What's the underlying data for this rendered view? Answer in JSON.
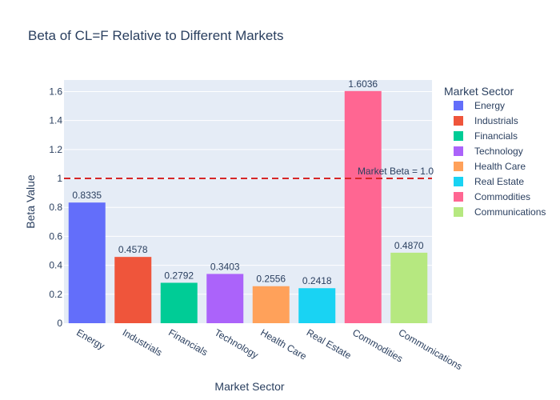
{
  "colors": {
    "plot_bg": "#e5ecf6",
    "grid": "#ffffff",
    "text": "#2a3f5f",
    "reference_line": "#d62728"
  },
  "chart_data": {
    "type": "bar",
    "title": "Beta of CL=F Relative to Different Markets",
    "xlabel": "Market Sector",
    "ylabel": "Beta Value",
    "ylim": [
      0,
      1.68
    ],
    "yticks": [
      0,
      0.2,
      0.4,
      0.6,
      0.8,
      1,
      1.2,
      1.4,
      1.6
    ],
    "ytick_labels": [
      "0",
      "0.2",
      "0.4",
      "0.6",
      "0.8",
      "1",
      "1.2",
      "1.4",
      "1.6"
    ],
    "grid": true,
    "categories": [
      "Energy",
      "Industrials",
      "Financials",
      "Technology",
      "Health Care",
      "Real Estate",
      "Commodities",
      "Communications"
    ],
    "values": [
      0.8335,
      0.4578,
      0.2792,
      0.3403,
      0.2556,
      0.2418,
      1.6036,
      0.487
    ],
    "value_labels": [
      "0.8335",
      "0.4578",
      "0.2792",
      "0.3403",
      "0.2556",
      "0.2418",
      "1.6036",
      "0.4870"
    ],
    "colors": [
      "#636efa",
      "#ef553b",
      "#00cc96",
      "#ab63fa",
      "#ffa15a",
      "#19d3f3",
      "#ff6692",
      "#b6e880"
    ],
    "legend": {
      "title": "Market Sector",
      "placement": "right",
      "entries": [
        "Energy",
        "Industrials",
        "Financials",
        "Technology",
        "Health Care",
        "Real Estate",
        "Commodities",
        "Communications"
      ]
    },
    "reference_line": {
      "value": 1.0,
      "style": "dashed",
      "label": "Market Beta = 1.0"
    }
  }
}
